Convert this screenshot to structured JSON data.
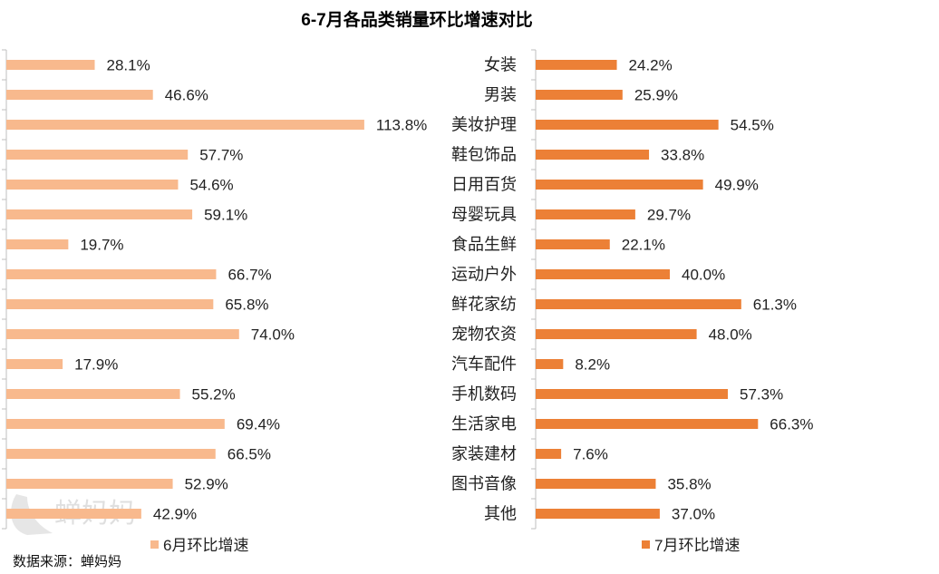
{
  "chart_data": {
    "type": "bar",
    "orientation": "horizontal",
    "title": "6-7月各品类销量环比增速对比",
    "categories": [
      "女装",
      "男装",
      "美妆护理",
      "鞋包饰品",
      "日用百货",
      "母婴玩具",
      "食品生鲜",
      "运动户外",
      "鲜花家纺",
      "宠物农资",
      "汽车配件",
      "手机数码",
      "生活家电",
      "家装建材",
      "图书音像",
      "其他"
    ],
    "series": [
      {
        "name": "6月环比增速",
        "color": "#F8B98D",
        "values": [
          28.1,
          46.6,
          113.8,
          57.7,
          54.6,
          59.1,
          19.7,
          66.7,
          65.8,
          74.0,
          17.9,
          55.2,
          69.4,
          66.5,
          52.9,
          42.9
        ],
        "labels": [
          "28.1%",
          "46.6%",
          "113.8%",
          "57.7%",
          "54.6%",
          "59.1%",
          "19.7%",
          "66.7%",
          "65.8%",
          "74.0%",
          "17.9%",
          "55.2%",
          "69.4%",
          "66.5%",
          "52.9%",
          "42.9%"
        ]
      },
      {
        "name": "7月环比增速",
        "color": "#EC8036",
        "values": [
          24.2,
          25.9,
          54.5,
          33.8,
          49.9,
          29.7,
          22.1,
          40.0,
          61.3,
          48.0,
          8.2,
          57.3,
          66.3,
          7.6,
          35.8,
          37.0
        ],
        "labels": [
          "24.2%",
          "25.9%",
          "54.5%",
          "33.8%",
          "49.9%",
          "29.7%",
          "22.1%",
          "40.0%",
          "61.3%",
          "48.0%",
          "8.2%",
          "57.3%",
          "66.3%",
          "7.6%",
          "35.8%",
          "37.0%"
        ]
      }
    ],
    "legend": [
      "6月环比增速",
      "7月环比增速"
    ]
  },
  "source": "数据来源：蝉妈妈",
  "watermark": "蝉妈妈"
}
